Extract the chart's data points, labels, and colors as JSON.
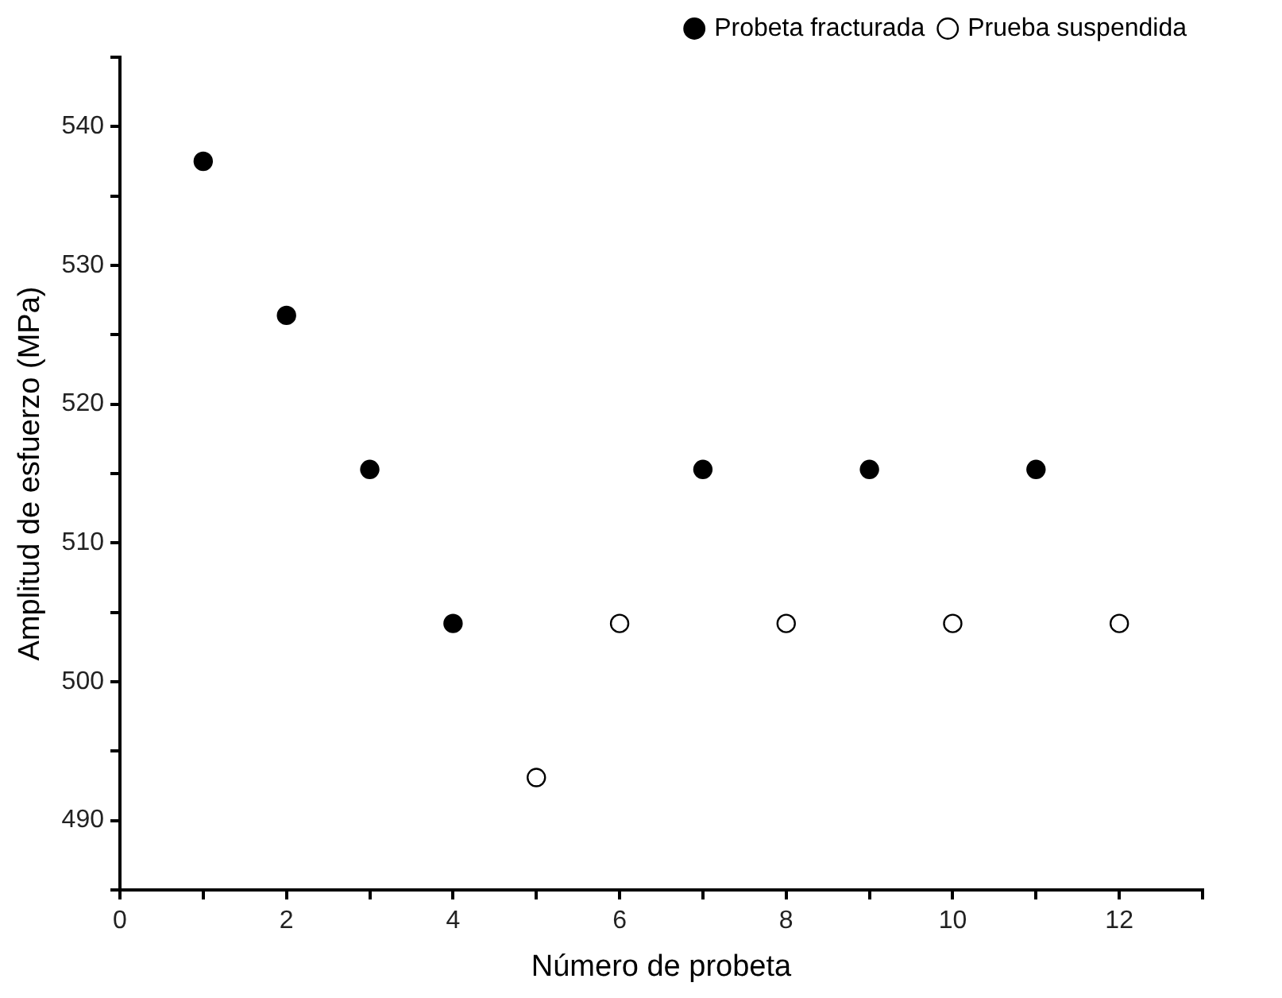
{
  "chart_data": {
    "type": "scatter",
    "xlabel": "Número de probeta",
    "ylabel": "Amplitud de esfuerzo (MPa)",
    "xlim": [
      0,
      13
    ],
    "xticks": [
      0,
      {
        "value": 1,
        "label": null
      },
      2,
      {
        "value": 3,
        "label": null
      },
      4,
      {
        "value": 5,
        "label": null
      },
      6,
      {
        "value": 7,
        "label": null
      },
      8,
      {
        "value": 9,
        "label": null
      },
      10,
      {
        "value": 11,
        "label": null
      },
      12,
      {
        "value": 13,
        "label": null
      }
    ],
    "ylim": [
      485,
      545
    ],
    "yticks": [
      {
        "value": 485,
        "label": null
      },
      490,
      {
        "value": 495,
        "label": null
      },
      500,
      {
        "value": 505,
        "label": null
      },
      510,
      {
        "value": 515,
        "label": null
      },
      520,
      {
        "value": 525,
        "label": null
      },
      530,
      {
        "value": 535,
        "label": null
      },
      540,
      {
        "value": 545,
        "label": null
      }
    ],
    "grid": false,
    "legend": "top right",
    "marker": "circle",
    "series": [
      {
        "name": "Probeta fracturada",
        "color": "#000000",
        "x": [
          1,
          2,
          3,
          4,
          7,
          9,
          11
        ],
        "values": [
          537.5,
          526.4,
          515.3,
          504.2,
          515.3,
          515.3,
          515.3
        ]
      },
      {
        "name": "Prueba suspendida",
        "color": "#ffffff",
        "x": [
          5,
          6,
          8,
          10,
          12
        ],
        "values": [
          493.1,
          504.2,
          504.2,
          504.2,
          504.2
        ]
      }
    ]
  }
}
